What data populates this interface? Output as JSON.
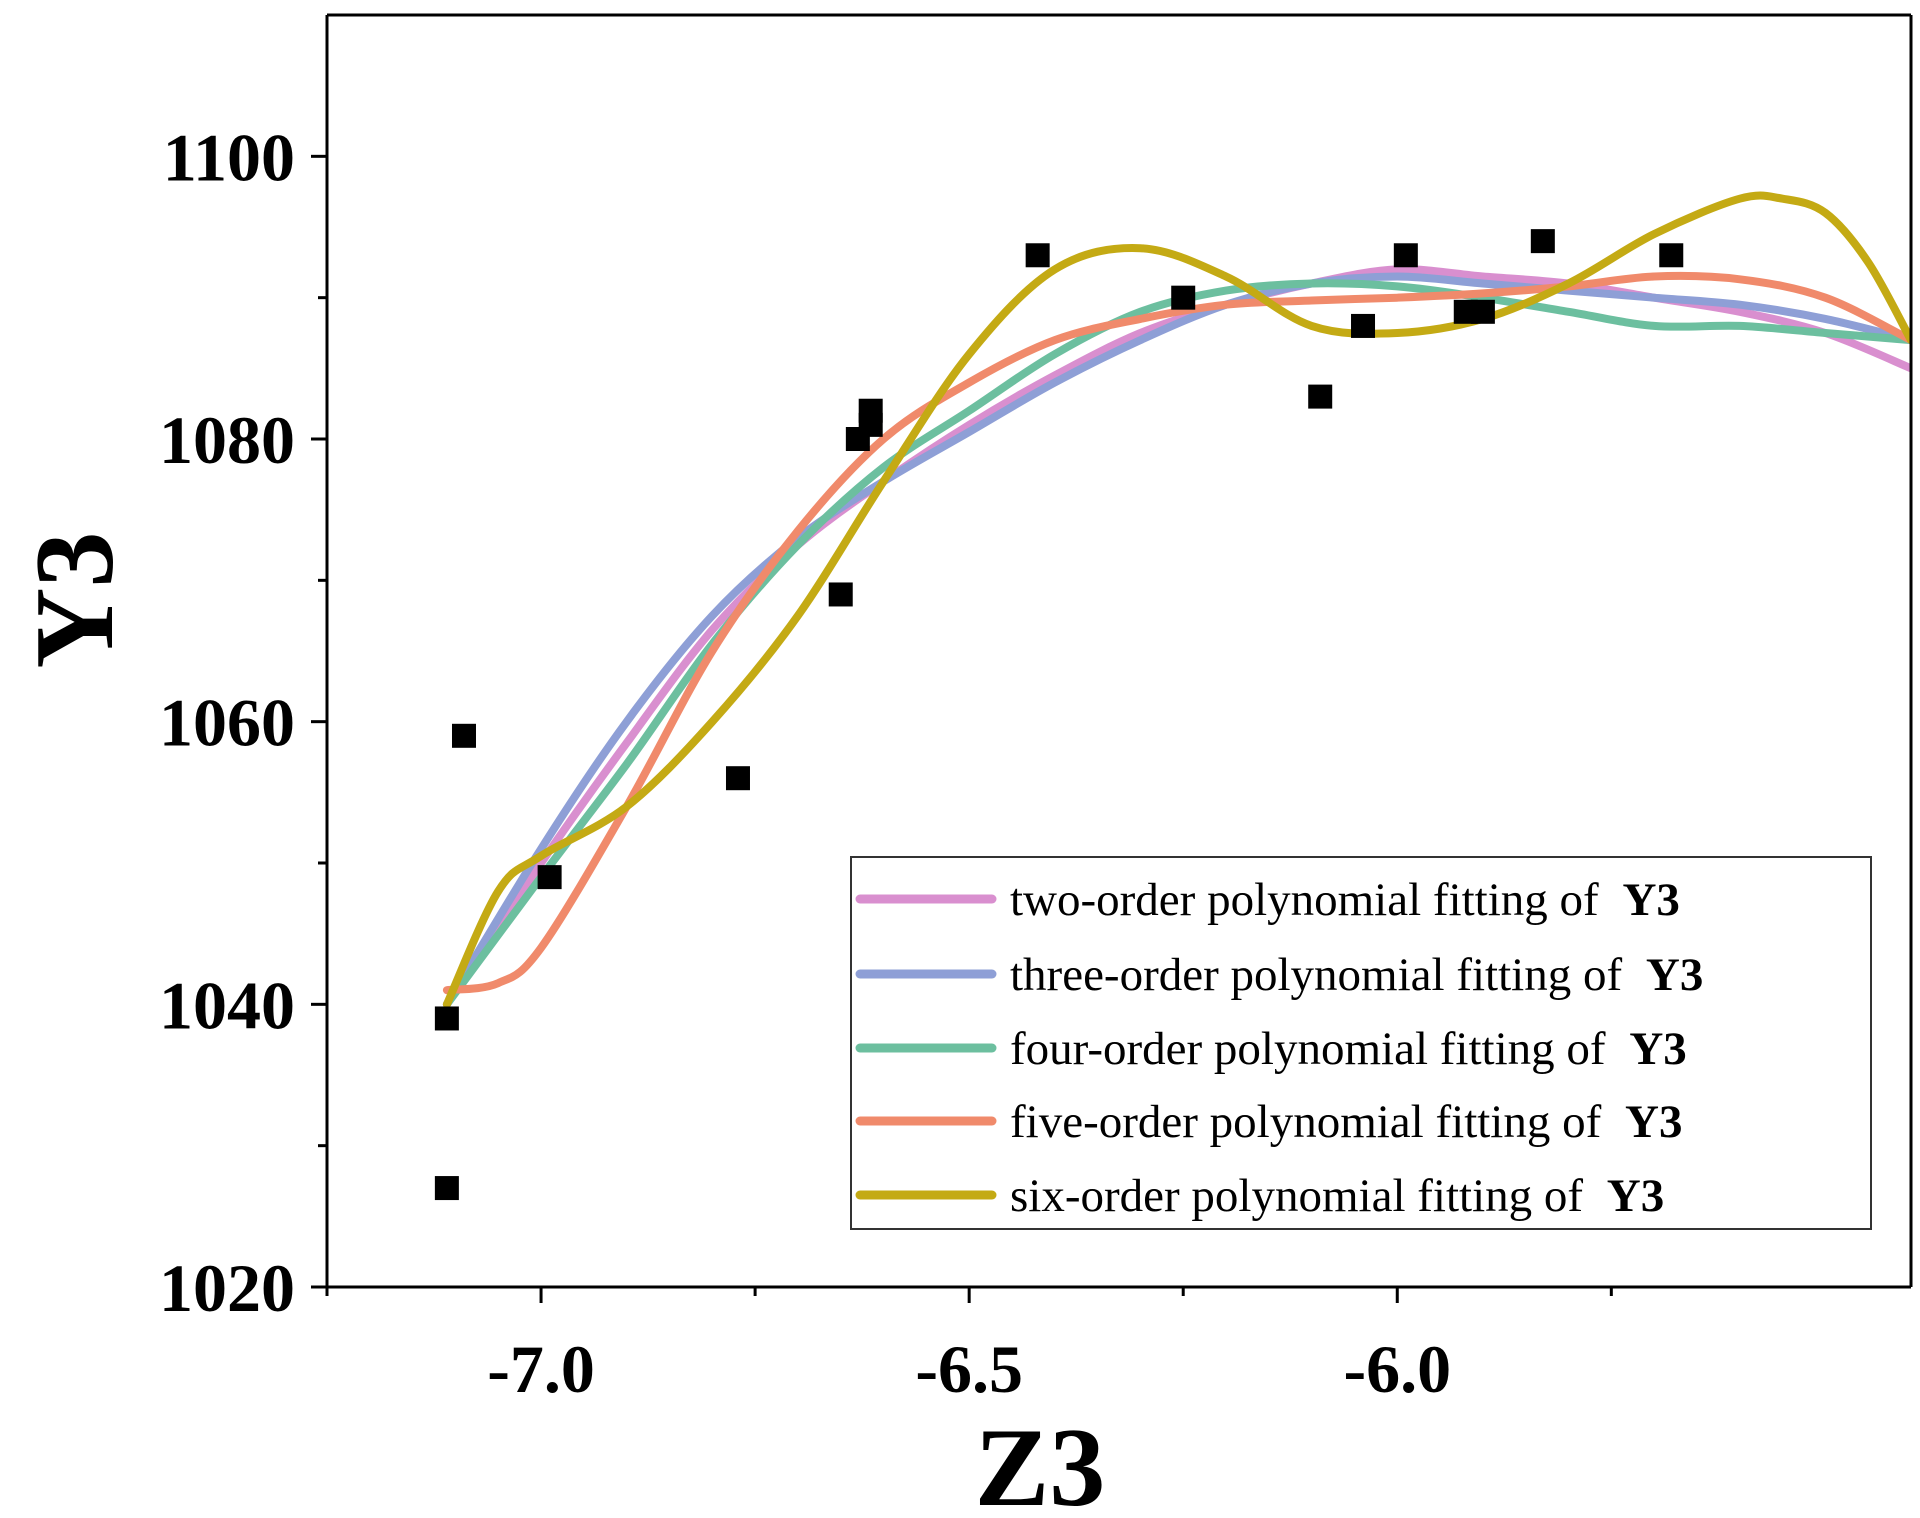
{
  "chart_data": {
    "type": "scatter",
    "title": "",
    "xlabel": "Z3",
    "ylabel": "Y3",
    "xlim": [
      -7.25,
      -5.4
    ],
    "ylim": [
      1020,
      1110
    ],
    "xticks": [
      -7.0,
      -6.5,
      -6.0
    ],
    "xtick_labels": [
      "-7.0",
      "-6.5",
      "-6.0"
    ],
    "yticks": [
      1020,
      1040,
      1060,
      1080,
      1100
    ],
    "ytick_labels": [
      "1020",
      "1040",
      "1060",
      "1080",
      "1100"
    ],
    "x_minor_ticks": [
      -7.25,
      -6.75,
      -6.25,
      -5.75
    ],
    "y_minor_ticks": [
      1030,
      1050,
      1070,
      1090
    ],
    "grid": false,
    "legend_position": "bottom-right",
    "scatter_points": {
      "x": [
        -7.11,
        -7.11,
        -7.09,
        -6.99,
        -6.77,
        -6.65,
        -6.63,
        -6.615,
        -6.615,
        -6.42,
        -6.25,
        -6.09,
        -6.04,
        -5.99,
        -5.92,
        -5.9,
        -5.83,
        -5.68
      ],
      "y": [
        1039,
        1027,
        1059,
        1049,
        1056,
        1069,
        1080,
        1081,
        1082,
        1093,
        1090,
        1083,
        1088,
        1093,
        1089,
        1089,
        1094,
        1093
      ]
    },
    "series": [
      {
        "name": "two-order polynomial fitting of",
        "bold_suffix": "Y3",
        "color": "#d98fcf",
        "x": [
          -7.11,
          -7.0,
          -6.9,
          -6.8,
          -6.7,
          -6.6,
          -6.5,
          -6.4,
          -6.3,
          -6.2,
          -6.1,
          -6.0,
          -5.9,
          -5.8,
          -5.7,
          -5.6,
          -5.5,
          -5.4
        ],
        "y": [
          1040,
          1050,
          1058.5,
          1066.5,
          1072.5,
          1077,
          1081,
          1084.5,
          1087.5,
          1089.5,
          1091,
          1092,
          1091.5,
          1091,
          1090,
          1089,
          1087.5,
          1085
        ]
      },
      {
        "name": "three-order polynomial fitting of",
        "bold_suffix": "Y3",
        "color": "#8e9fd6",
        "x": [
          -7.11,
          -7.0,
          -6.9,
          -6.8,
          -6.7,
          -6.6,
          -6.5,
          -6.4,
          -6.3,
          -6.2,
          -6.1,
          -6.0,
          -5.9,
          -5.8,
          -5.7,
          -5.6,
          -5.5,
          -5.4
        ],
        "y": [
          1040,
          1051,
          1060,
          1067.5,
          1073,
          1077,
          1080.5,
          1084,
          1087,
          1089.5,
          1091,
          1091.5,
          1091,
          1090.5,
          1090,
          1089.5,
          1088.5,
          1087
        ]
      },
      {
        "name": "four-order polynomial fitting of",
        "bold_suffix": "Y3",
        "color": "#6cbf9f",
        "x": [
          -7.11,
          -7.0,
          -6.9,
          -6.8,
          -6.7,
          -6.6,
          -6.5,
          -6.4,
          -6.3,
          -6.2,
          -6.1,
          -6.0,
          -5.9,
          -5.8,
          -5.7,
          -5.6,
          -5.5,
          -5.4
        ],
        "y": [
          1040,
          1049,
          1057,
          1065.5,
          1072.5,
          1078,
          1082,
          1086,
          1089,
          1090.5,
          1091,
          1090.8,
          1090,
          1089,
          1088,
          1088,
          1087.5,
          1087
        ]
      },
      {
        "name": "five-order polynomial fitting of",
        "bold_suffix": "Y3",
        "color": "#f08a6b",
        "x": [
          -7.11,
          -7.05,
          -7.0,
          -6.9,
          -6.8,
          -6.7,
          -6.6,
          -6.5,
          -6.4,
          -6.3,
          -6.2,
          -6.1,
          -6.0,
          -5.9,
          -5.8,
          -5.7,
          -5.6,
          -5.5,
          -5.4
        ],
        "y": [
          1041,
          1041.5,
          1044,
          1054,
          1065,
          1073.5,
          1080,
          1084,
          1087,
          1088.5,
          1089.5,
          1089.8,
          1090,
          1090.3,
          1090.8,
          1091.5,
          1091.3,
          1090,
          1087
        ]
      },
      {
        "name": "six-order polynomial fitting of",
        "bold_suffix": "Y3",
        "color": "#c4aa14",
        "x": [
          -7.11,
          -7.05,
          -7.0,
          -6.9,
          -6.8,
          -6.7,
          -6.6,
          -6.5,
          -6.4,
          -6.3,
          -6.2,
          -6.1,
          -6.0,
          -5.9,
          -5.8,
          -5.7,
          -5.6,
          -5.55,
          -5.5,
          -5.45,
          -5.4
        ],
        "y": [
          1040,
          1048,
          1050.5,
          1054,
          1060,
          1067.5,
          1077,
          1086,
          1092,
          1093.5,
          1091.5,
          1088,
          1087.5,
          1088.5,
          1091,
          1094.5,
          1097,
          1097,
          1096,
          1092.5,
          1087
        ]
      }
    ]
  }
}
